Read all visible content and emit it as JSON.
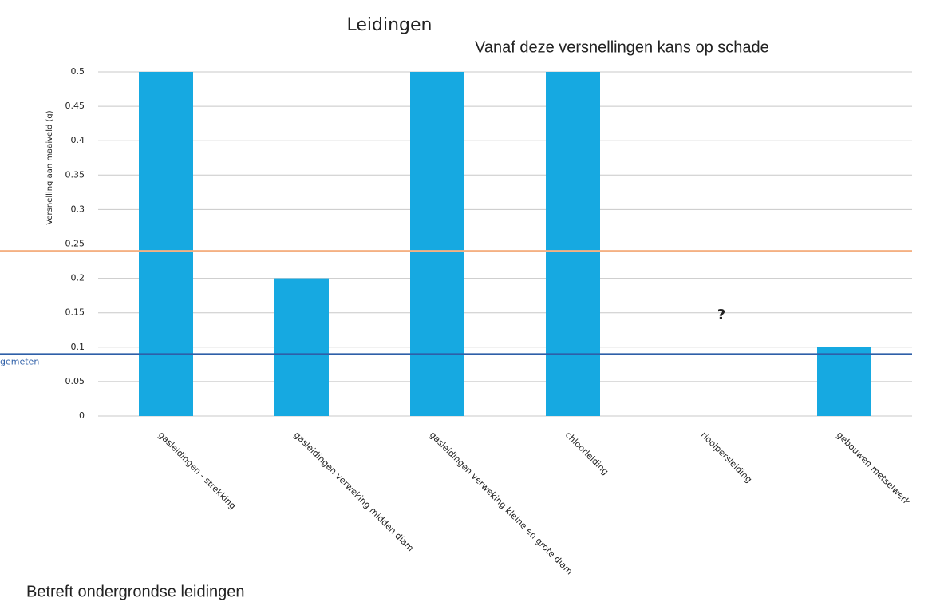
{
  "chart_data": {
    "type": "bar",
    "title": "Leidingen",
    "subtitle": "Vanaf deze versnellingen kans op schade",
    "ylabel": "Versnelling aan maaiveld (g)",
    "categories": [
      "gasleidingen - strekking",
      "gasleidingen verweking midden diam",
      "gasleidingen verweking kleine en grote diam",
      "chloorleiding",
      "rioolpersleiding",
      "gebouwen metselwerk"
    ],
    "values": [
      0.5,
      0.2,
      0.5,
      0.5,
      null,
      0.1
    ],
    "color": "#16a9e1",
    "ylim": [
      0,
      0.5
    ],
    "yticks": [
      0,
      0.05,
      0.1,
      0.15,
      0.2,
      0.25,
      0.3,
      0.35,
      0.4,
      0.45,
      0.5
    ],
    "grid": true,
    "reference_lines": [
      {
        "value": 0.24,
        "color": "#f4b183"
      },
      {
        "value": 0.09,
        "label": "gemeten",
        "color": "#2e5fa8"
      }
    ],
    "annotations": [
      {
        "text": "?",
        "category": 4,
        "value": 0.165
      }
    ],
    "note": "Betreft ondergrondse leidingen"
  }
}
